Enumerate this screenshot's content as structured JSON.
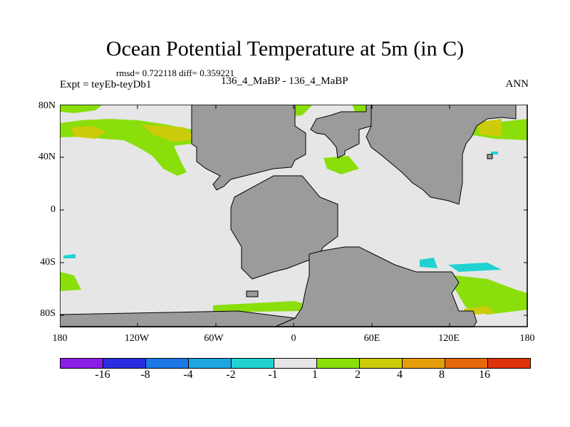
{
  "title": "Ocean Potential Temperature at 5m (in C)",
  "stats": "rmsd= 0.722118  diff= 0.359221",
  "experiment": "Expt = teyEb-teyDb1",
  "period": "136_4_MaBP - 136_4_MaBP",
  "season": "ANN",
  "lat_labels": [
    "80N",
    "40N",
    "0",
    "40S",
    "80S"
  ],
  "lon_labels": [
    "180",
    "120W",
    "60W",
    "0",
    "60E",
    "120E",
    "180"
  ],
  "colorbar": {
    "colors": [
      "#8a1ee6",
      "#2a2ee0",
      "#1e78e6",
      "#1ea6e0",
      "#20d2d2",
      "#e6e6e6",
      "#8ade0a",
      "#cccc0a",
      "#e69e0a",
      "#e6680a",
      "#e0320a"
    ],
    "labels": [
      "-16",
      "-8",
      "-4",
      "-2",
      "-1",
      "1",
      "2",
      "4",
      "8",
      "16"
    ]
  },
  "map_colors": {
    "land": "#9b9b9b",
    "ocean_neutral": "#e6e6e6",
    "warm_1_2": "#8ade0a",
    "warm_2_4": "#cccc0a",
    "cool": "#20d2d2"
  }
}
